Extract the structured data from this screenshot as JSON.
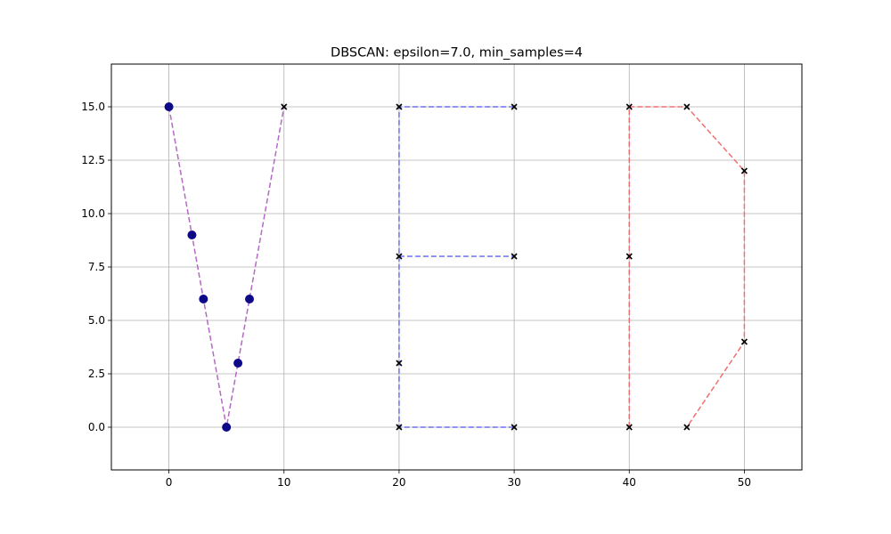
{
  "chart_data": {
    "type": "scatter",
    "title": "DBSCAN: epsilon=7.0, min_samples=4",
    "xlabel": "",
    "ylabel": "",
    "xlim": [
      -5,
      55
    ],
    "ylim": [
      -2,
      17
    ],
    "x_ticks": [
      0,
      10,
      20,
      30,
      40,
      50
    ],
    "y_ticks": [
      0.0,
      2.5,
      5.0,
      7.5,
      10.0,
      12.5,
      15.0
    ],
    "x_tick_labels": [
      "0",
      "10",
      "20",
      "30",
      "40",
      "50"
    ],
    "y_tick_labels": [
      "0.0",
      "2.5",
      "5.0",
      "7.5",
      "10.0",
      "12.5",
      "15.0"
    ],
    "grid": true,
    "outline_series": [
      {
        "color": "#b46ac4",
        "style": "dashed",
        "segments": [
          [
            [
              0,
              15
            ],
            [
              2,
              9
            ],
            [
              3,
              6
            ],
            [
              5,
              0
            ],
            [
              6,
              3
            ],
            [
              7,
              6
            ],
            [
              10,
              15
            ]
          ]
        ]
      },
      {
        "color": "#6f6ff2",
        "style": "dashed",
        "segments": [
          [
            [
              30,
              15
            ],
            [
              20,
              15
            ],
            [
              20,
              0
            ],
            [
              30,
              0
            ]
          ],
          [
            [
              20,
              8
            ],
            [
              30,
              8
            ]
          ]
        ]
      },
      {
        "color": "#ef7070",
        "style": "dashed",
        "segments": [
          [
            [
              40,
              0
            ],
            [
              40,
              15
            ],
            [
              45,
              15
            ],
            [
              50,
              12
            ],
            [
              50,
              4
            ],
            [
              45,
              0
            ]
          ]
        ]
      }
    ],
    "core_points": {
      "marker": "circle",
      "color": "#0d0887",
      "points": [
        [
          0,
          15
        ],
        [
          2,
          9
        ],
        [
          3,
          6
        ],
        [
          5,
          0
        ],
        [
          6,
          3
        ],
        [
          7,
          6
        ]
      ]
    },
    "noise_points": {
      "marker": "x",
      "color": "#000000",
      "points": [
        [
          10,
          15
        ],
        [
          20,
          15
        ],
        [
          30,
          15
        ],
        [
          20,
          8
        ],
        [
          30,
          8
        ],
        [
          20,
          3
        ],
        [
          20,
          0
        ],
        [
          30,
          0
        ],
        [
          40,
          15
        ],
        [
          45,
          15
        ],
        [
          50,
          12
        ],
        [
          40,
          8
        ],
        [
          50,
          4
        ],
        [
          40,
          0
        ],
        [
          45,
          0
        ]
      ]
    }
  }
}
